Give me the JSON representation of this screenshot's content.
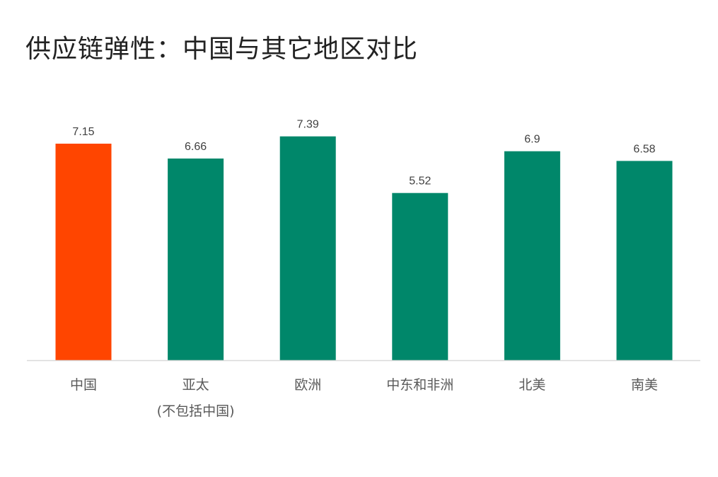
{
  "chart_data": {
    "type": "bar",
    "title": "供应链弹性：中国与其它地区对比",
    "categories": [
      [
        "中国"
      ],
      [
        "亚太",
        "(不包括中国)"
      ],
      [
        "欧洲"
      ],
      [
        "中东和非洲"
      ],
      [
        "北美"
      ],
      [
        "南美"
      ]
    ],
    "values": [
      7.15,
      6.66,
      7.39,
      5.52,
      6.9,
      6.58
    ],
    "value_labels": [
      "7.15",
      "6.66",
      "7.39",
      "5.52",
      "6.9",
      "6.58"
    ],
    "bar_colors": [
      "#FF4500",
      "#00876A",
      "#00876A",
      "#00876A",
      "#00876A",
      "#00876A"
    ],
    "ylim": [
      0,
      8
    ],
    "grid": false,
    "legend": "none",
    "xlabel": "",
    "ylabel": ""
  },
  "colors": {
    "highlight": "#FF4500",
    "bar": "#00876A",
    "axis": "#d9d9d9"
  }
}
